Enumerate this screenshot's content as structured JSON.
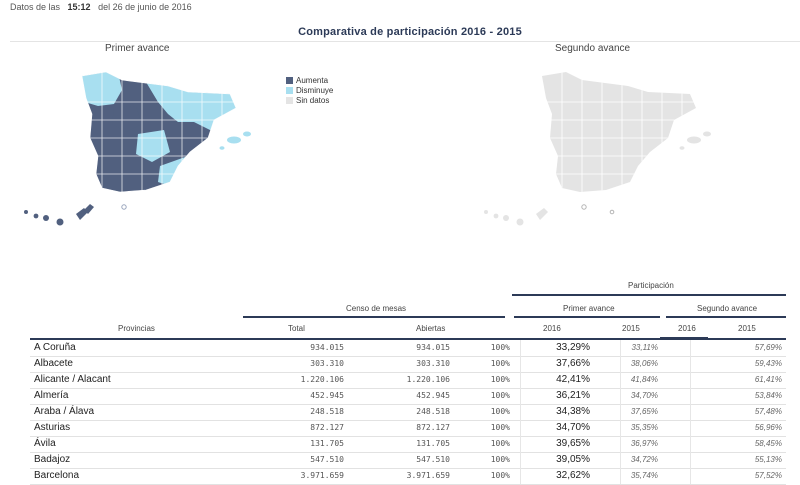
{
  "header": {
    "prefix": "Datos de las",
    "time": "15:12",
    "suffix": "del 26 de junio de 2016",
    "title": "Comparativa de participación 2016 - 2015"
  },
  "maps": {
    "first_label": "Primer avance",
    "second_label": "Segundo avance"
  },
  "legend": [
    {
      "label": "Aumenta",
      "color": "#51607f"
    },
    {
      "label": "Disminuye",
      "color": "#a8dff0"
    },
    {
      "label": "Sin datos",
      "color": "#e4e4e4"
    }
  ],
  "colors": {
    "increase": "#51607f",
    "decrease": "#a8dff0",
    "nodata": "#e4e4e4",
    "dark_rule": "#2c3a57"
  },
  "table": {
    "participation_label": "Participación",
    "census_label": "Censo de mesas",
    "provinces_label": "Provincias",
    "total_label": "Total",
    "open_label": "Abiertas",
    "first_label": "Primer avance",
    "second_label": "Segundo avance",
    "y2016": "2016",
    "y2015": "2015",
    "rows": [
      {
        "province": "A Coruña",
        "total": "934.015",
        "open": "934.015",
        "pct": "100%",
        "p1_2016": "33,29%",
        "p1_2015": "33,11%",
        "p2_2016": "",
        "p2_2015": "57,69%"
      },
      {
        "province": "Albacete",
        "total": "303.310",
        "open": "303.310",
        "pct": "100%",
        "p1_2016": "37,66%",
        "p1_2015": "38,06%",
        "p2_2016": "",
        "p2_2015": "59,43%"
      },
      {
        "province": "Alicante / Alacant",
        "total": "1.220.106",
        "open": "1.220.106",
        "pct": "100%",
        "p1_2016": "42,41%",
        "p1_2015": "41,84%",
        "p2_2016": "",
        "p2_2015": "61,41%"
      },
      {
        "province": "Almería",
        "total": "452.945",
        "open": "452.945",
        "pct": "100%",
        "p1_2016": "36,21%",
        "p1_2015": "34,70%",
        "p2_2016": "",
        "p2_2015": "53,84%"
      },
      {
        "province": "Araba / Álava",
        "total": "248.518",
        "open": "248.518",
        "pct": "100%",
        "p1_2016": "34,38%",
        "p1_2015": "37,65%",
        "p2_2016": "",
        "p2_2015": "57,48%"
      },
      {
        "province": "Asturias",
        "total": "872.127",
        "open": "872.127",
        "pct": "100%",
        "p1_2016": "34,70%",
        "p1_2015": "35,35%",
        "p2_2016": "",
        "p2_2015": "56,96%"
      },
      {
        "province": "Ávila",
        "total": "131.705",
        "open": "131.705",
        "pct": "100%",
        "p1_2016": "39,65%",
        "p1_2015": "36,97%",
        "p2_2016": "",
        "p2_2015": "58,45%"
      },
      {
        "province": "Badajoz",
        "total": "547.510",
        "open": "547.510",
        "pct": "100%",
        "p1_2016": "39,05%",
        "p1_2015": "34,72%",
        "p2_2016": "",
        "p2_2015": "55,13%"
      },
      {
        "province": "Barcelona",
        "total": "3.971.659",
        "open": "3.971.659",
        "pct": "100%",
        "p1_2016": "32,62%",
        "p1_2015": "35,74%",
        "p2_2016": "",
        "p2_2015": "57,52%"
      }
    ]
  }
}
